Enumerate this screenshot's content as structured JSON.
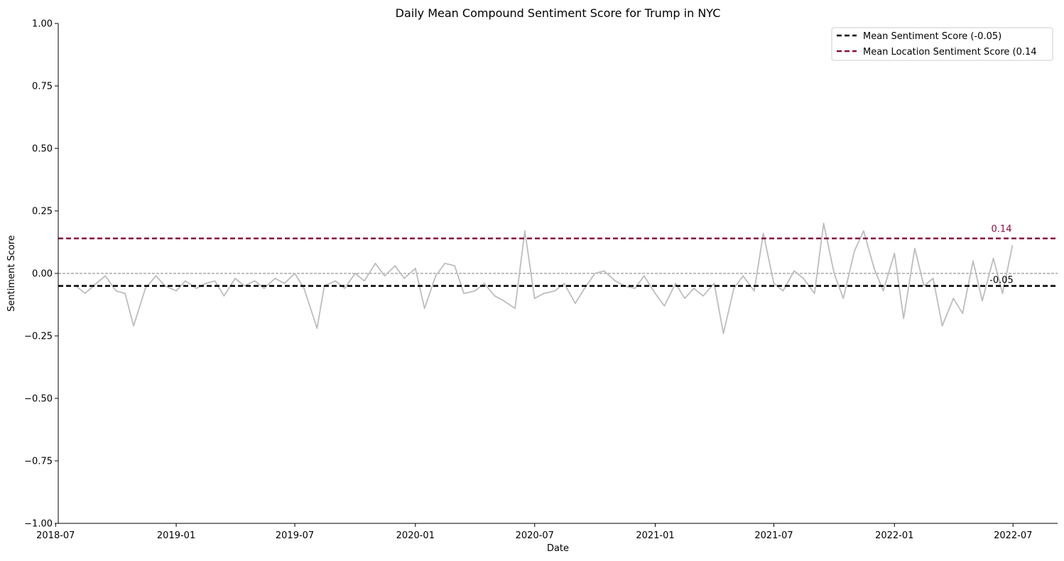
{
  "chart_data": {
    "type": "line",
    "title": "Daily Mean Compound Sentiment Score for Trump in NYC",
    "xlabel": "Date",
    "ylabel": "Sentiment Score",
    "ylim": [
      -1.0,
      1.0
    ],
    "xlim": [
      "2018-07-05",
      "2022-09-07"
    ],
    "y_ticks": [
      -1.0,
      -0.75,
      -0.5,
      -0.25,
      0.0,
      0.25,
      0.5,
      0.75,
      1.0
    ],
    "y_tick_labels": [
      "−1.00",
      "−0.75",
      "−0.50",
      "−0.25",
      "0.00",
      "0.25",
      "0.50",
      "0.75",
      "1.00"
    ],
    "x_ticks": [
      "2018-07-01",
      "2019-01-01",
      "2019-07-01",
      "2020-01-01",
      "2020-07-01",
      "2021-01-01",
      "2021-07-01",
      "2022-01-01",
      "2022-07-01"
    ],
    "x_tick_labels": [
      "2018-07",
      "2019-01",
      "2019-07",
      "2020-01",
      "2020-07",
      "2021-01",
      "2021-07",
      "2022-01",
      "2022-07"
    ],
    "grid": false,
    "legend_position": "top-right",
    "series": [
      {
        "color": "#bdbdbd",
        "x": [
          "2018-08-01",
          "2018-08-15",
          "2018-09-01",
          "2018-09-15",
          "2018-10-01",
          "2018-10-15",
          "2018-10-28",
          "2018-11-15",
          "2018-12-01",
          "2018-12-15",
          "2019-01-01",
          "2019-01-15",
          "2019-02-01",
          "2019-02-15",
          "2019-03-01",
          "2019-03-15",
          "2019-04-01",
          "2019-04-15",
          "2019-05-01",
          "2019-05-15",
          "2019-06-01",
          "2019-06-15",
          "2019-07-01",
          "2019-07-15",
          "2019-08-04",
          "2019-08-15",
          "2019-09-01",
          "2019-09-15",
          "2019-10-01",
          "2019-10-15",
          "2019-11-01",
          "2019-11-15",
          "2019-12-01",
          "2019-12-15",
          "2020-01-01",
          "2020-01-15",
          "2020-02-01",
          "2020-02-15",
          "2020-03-01",
          "2020-03-15",
          "2020-04-01",
          "2020-04-15",
          "2020-05-01",
          "2020-05-15",
          "2020-06-01",
          "2020-06-16",
          "2020-07-01",
          "2020-07-15",
          "2020-08-01",
          "2020-08-15",
          "2020-09-01",
          "2020-09-15",
          "2020-10-01",
          "2020-10-15",
          "2020-11-01",
          "2020-11-15",
          "2020-12-01",
          "2020-12-15",
          "2021-01-01",
          "2021-01-15",
          "2021-02-01",
          "2021-02-15",
          "2021-03-01",
          "2021-03-15",
          "2021-04-01",
          "2021-04-15",
          "2021-05-01",
          "2021-05-15",
          "2021-06-01",
          "2021-06-15",
          "2021-07-01",
          "2021-07-15",
          "2021-08-01",
          "2021-08-15",
          "2021-09-01",
          "2021-09-15",
          "2021-10-01",
          "2021-10-15",
          "2021-11-01",
          "2021-11-15",
          "2021-12-01",
          "2021-12-15",
          "2022-01-01",
          "2022-01-15",
          "2022-02-01",
          "2022-02-15",
          "2022-03-01",
          "2022-03-15",
          "2022-04-01",
          "2022-04-15",
          "2022-05-01",
          "2022-05-15",
          "2022-06-01",
          "2022-06-15",
          "2022-06-30"
        ],
        "y": [
          -0.05,
          -0.08,
          -0.04,
          -0.01,
          -0.07,
          -0.08,
          -0.21,
          -0.06,
          -0.01,
          -0.05,
          -0.07,
          -0.03,
          -0.06,
          -0.04,
          -0.03,
          -0.09,
          -0.02,
          -0.05,
          -0.03,
          -0.06,
          -0.02,
          -0.04,
          0.0,
          -0.06,
          -0.22,
          -0.05,
          -0.03,
          -0.06,
          0.0,
          -0.03,
          0.04,
          -0.01,
          0.03,
          -0.02,
          0.02,
          -0.14,
          -0.01,
          0.04,
          0.03,
          -0.08,
          -0.07,
          -0.04,
          -0.09,
          -0.11,
          -0.14,
          0.17,
          -0.1,
          -0.08,
          -0.07,
          -0.04,
          -0.12,
          -0.06,
          0.0,
          0.01,
          -0.03,
          -0.05,
          -0.06,
          -0.01,
          -0.08,
          -0.13,
          -0.04,
          -0.1,
          -0.06,
          -0.09,
          -0.04,
          -0.24,
          -0.06,
          -0.01,
          -0.07,
          0.16,
          -0.04,
          -0.07,
          0.01,
          -0.02,
          -0.08,
          0.2,
          0.0,
          -0.1,
          0.09,
          0.17,
          0.02,
          -0.07,
          0.08,
          -0.18,
          0.1,
          -0.05,
          -0.02,
          -0.21,
          -0.1,
          -0.16,
          0.05,
          -0.11,
          0.06,
          -0.08,
          0.11
        ]
      }
    ],
    "reference_lines": [
      {
        "label": "Mean Sentiment Score (-0.05)",
        "value": -0.05,
        "color": "#000000",
        "annotation": "-0.05"
      },
      {
        "label": "Mean Location Sentiment Score (0.14",
        "value": 0.14,
        "color": "#8b0a3c",
        "annotation": "0.14"
      }
    ],
    "zero_line": {
      "value": 0.0,
      "color": "#808080"
    }
  }
}
